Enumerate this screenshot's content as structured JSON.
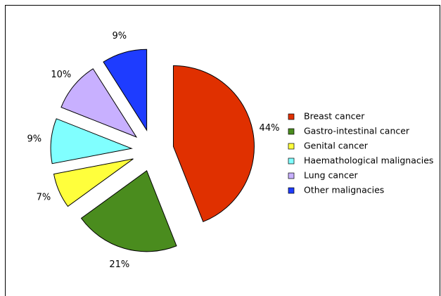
{
  "chart_data": {
    "type": "pie",
    "categories": [
      "Breast cancer",
      "Gastro-intestinal cancer",
      "Genital cancer",
      "Haemathological malignacies",
      "Lung cancer",
      "Other malignacies"
    ],
    "values": [
      44,
      21,
      7,
      9,
      10,
      9
    ],
    "value_labels": [
      "44%",
      "21%",
      "7%",
      "9%",
      "10%",
      "9%"
    ],
    "colors": [
      "#e03000",
      "#4a8c1e",
      "#ffff3c",
      "#80ffff",
      "#c8b0ff",
      "#1e3cff"
    ],
    "exploded": true,
    "legend": "right"
  }
}
